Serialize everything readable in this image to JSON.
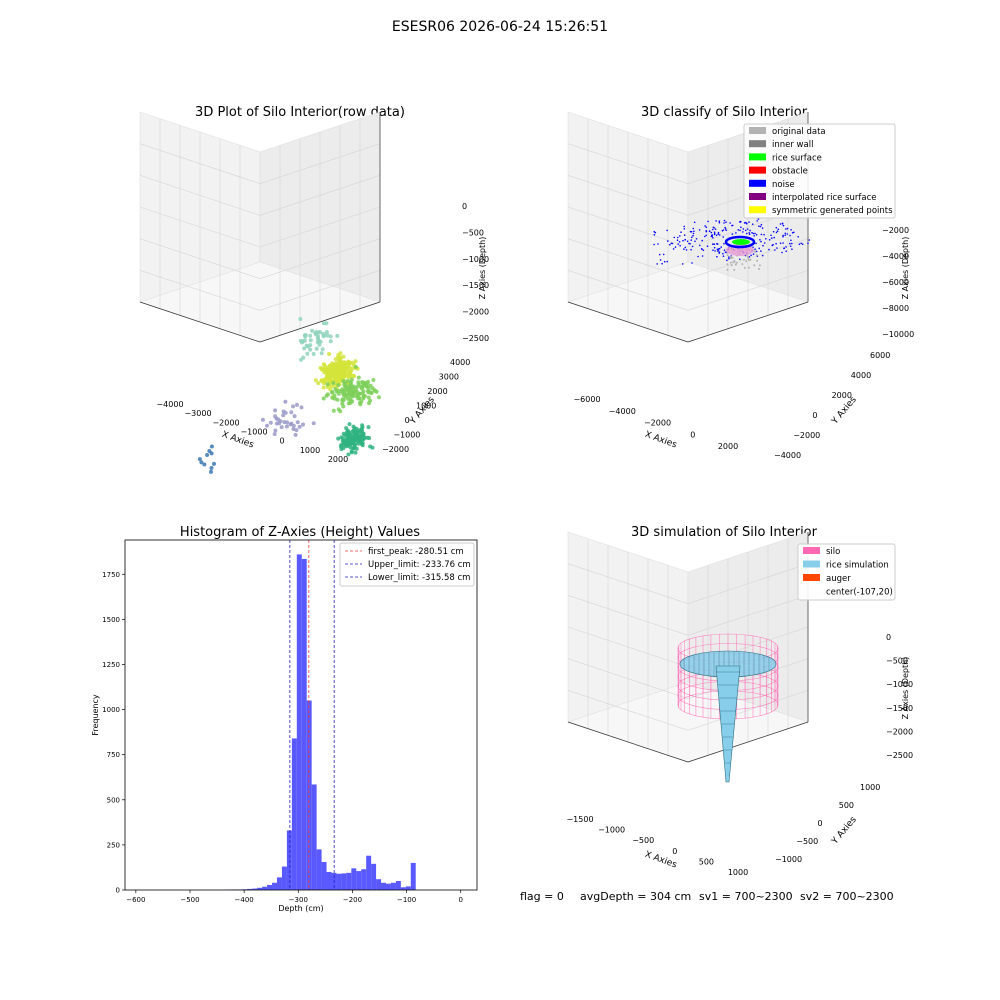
{
  "suptitle": "ESESR06 2026-06-24 15:26:51",
  "status_line": {
    "flag": "flag = 0",
    "avg": "avgDepth = 304 cm",
    "sv1": "sv1 = 700~2300",
    "sv2": "sv2 = 700~2300"
  },
  "colors": {
    "hist_bar": "#5050ff",
    "first_peak": "#ff3b3b",
    "limit": "#2020c0",
    "silo": "#ff69b4",
    "rice": "#87ceeb",
    "auger": "#ff4500",
    "original": "#b3b3b3",
    "inner_wall": "#808080",
    "rice_surface": "#00ff00",
    "obstacle": "#ff0000",
    "noise": "#0000ff",
    "interpolated": "#800080",
    "symmetric": "#ffff00"
  },
  "chart_data": [
    {
      "type": "scatter",
      "title": "3D Plot of Silo Interior(row data)",
      "xlabel": "X Axies",
      "ylabel": "Y Axies",
      "zlabel": "Z Axies (Depth)",
      "x_ticks": [
        "−4000",
        "−3000",
        "−2000",
        "−1000",
        "0",
        "1000",
        "2000"
      ],
      "y_ticks": [
        "−2000",
        "−1000",
        "0",
        "1000",
        "2000",
        "3000",
        "4000"
      ],
      "z_ticks": [
        "0",
        "−500",
        "−1000",
        "−1500",
        "−2000",
        "−2500"
      ],
      "clusters": [
        {
          "x": -1200,
          "y": 500,
          "z": -1000,
          "color": "#d4e43a",
          "count": 260,
          "spread": 550
        },
        {
          "x": -700,
          "y": 500,
          "z": -1250,
          "color": "#7ed05a",
          "count": 140,
          "spread": 800
        },
        {
          "x": -200,
          "y": 0,
          "z": -1800,
          "color": "#2fb380",
          "count": 130,
          "spread": 500
        },
        {
          "x": -2500,
          "y": 1200,
          "z": -900,
          "color": "#8fd4bd",
          "count": 45,
          "spread": 900
        },
        {
          "x": -2000,
          "y": -600,
          "z": -1600,
          "color": "#9a9ac8",
          "count": 35,
          "spread": 800
        },
        {
          "x": -3500,
          "y": -1500,
          "z": -2200,
          "color": "#3a78b0",
          "count": 10,
          "spread": 400
        }
      ]
    },
    {
      "type": "scatter",
      "title": "3D classify of Silo Interior",
      "xlabel": "X Axies",
      "ylabel": "Y Axies",
      "zlabel": "Z Axies (Depth)",
      "x_ticks": [
        "−6000",
        "−4000",
        "−2000",
        "0",
        "2000"
      ],
      "y_ticks": [
        "−4000",
        "−2000",
        "0",
        "2000",
        "4000",
        "6000"
      ],
      "z_ticks": [
        "−2000",
        "−4000",
        "−6000",
        "−8000",
        "−10000"
      ],
      "legend": [
        "original data",
        "inner wall",
        "rice surface",
        "obstacle",
        "noise",
        "interpolated rice surface",
        "symmetric generated points"
      ],
      "legend_loc": "upper right"
    },
    {
      "type": "bar",
      "title": "Histogram of Z-Axies (Height) Values",
      "xlabel": "Depth (cm)",
      "ylabel": "Frequency",
      "xlim": [
        -620,
        30
      ],
      "ylim": [
        0,
        1940
      ],
      "x_ticks": [
        -600,
        -500,
        -400,
        -300,
        -200,
        -100,
        0
      ],
      "y_ticks": [
        0,
        250,
        500,
        750,
        1000,
        1250,
        1500,
        1750
      ],
      "bin_width": 9.15,
      "bin_start": -440,
      "values": [
        1,
        2,
        3,
        3,
        4,
        6,
        8,
        12,
        18,
        28,
        40,
        70,
        130,
        330,
        840,
        1860,
        1835,
        1050,
        585,
        225,
        155,
        100,
        95,
        90,
        92,
        95,
        120,
        105,
        115,
        190,
        145,
        60,
        40,
        35,
        40,
        50,
        15,
        20,
        150
      ],
      "vlines": [
        {
          "x": -280.51,
          "label": "first_peak: -280.51 cm",
          "color_key": "first_peak"
        },
        {
          "x": -233.76,
          "label": "Upper_limit: -233.76 cm",
          "color_key": "limit"
        },
        {
          "x": -315.58,
          "label": "Lower_limit: -315.58 cm",
          "color_key": "limit"
        }
      ],
      "legend_loc": "upper right"
    },
    {
      "type": "surface",
      "title": "3D simulation of Silo Interior",
      "xlabel": "X Axies",
      "ylabel": "Y Axies",
      "zlabel": "Z Axies (Depth)",
      "x_ticks": [
        "−1500",
        "−1000",
        "−500",
        "0",
        "500",
        "1000"
      ],
      "y_ticks": [
        "−1000",
        "−500",
        "0",
        "500",
        "1000"
      ],
      "z_ticks": [
        "0",
        "−500",
        "−1000",
        "−1500",
        "−2000",
        "−2500"
      ],
      "legend": [
        "silo",
        "rice simulation",
        "auger",
        "center(-107,20)"
      ],
      "legend_loc": "upper right"
    }
  ]
}
